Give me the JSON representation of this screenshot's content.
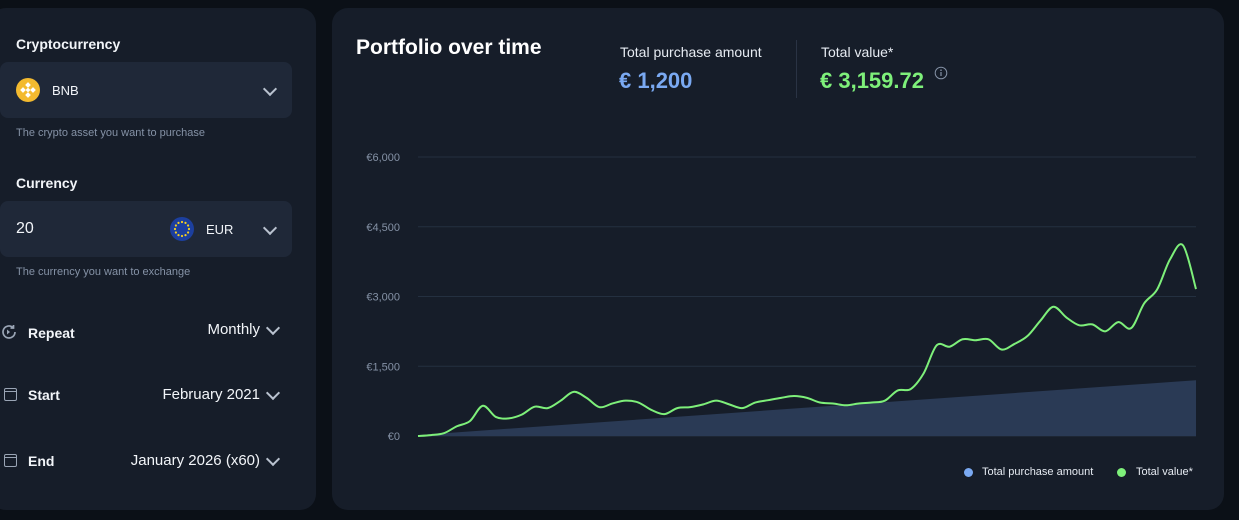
{
  "form": {
    "crypto": {
      "label": "Cryptocurrency",
      "selected": "BNB",
      "icon": "bnb-coin-icon",
      "hint": "The crypto asset you want to purchase"
    },
    "currency": {
      "label": "Currency",
      "amount": "20",
      "selected": "EUR",
      "icon": "eu-flag-icon",
      "hint": "The currency you want to exchange"
    },
    "repeat": {
      "label": "Repeat",
      "value": "Monthly"
    },
    "start": {
      "label": "Start",
      "value": "February 2021"
    },
    "end": {
      "label": "End",
      "value": "January 2026 (x60)"
    }
  },
  "summary": {
    "title": "Portfolio over time",
    "purchase_label": "Total purchase amount",
    "purchase_value": "€ 1,200",
    "value_label": "Total value*",
    "value_value": "€ 3,159.72"
  },
  "colors": {
    "purchase": "#7aa9f2",
    "value": "#7ef07a",
    "purchase_area": "#2a3a55"
  },
  "chart_data": {
    "type": "area",
    "yticks": [
      "€6,000",
      "€4,500",
      "€3,000",
      "€1,500",
      "€0"
    ],
    "ytick_values": [
      6000,
      4500,
      3000,
      1500,
      0
    ],
    "ylim": [
      0,
      6000
    ],
    "x_start": "February 2021",
    "x_end": "January 2026",
    "grid": true,
    "legend_position": "bottom-right",
    "series": [
      {
        "name": "Total purchase amount",
        "values": [
          20,
          1200
        ]
      },
      {
        "name": "Total value*",
        "values": [
          0,
          20,
          60,
          210,
          320,
          650,
          410,
          380,
          460,
          630,
          600,
          760,
          950,
          820,
          620,
          700,
          760,
          720,
          560,
          470,
          600,
          620,
          680,
          760,
          680,
          600,
          720,
          770,
          820,
          860,
          820,
          720,
          700,
          660,
          700,
          720,
          760,
          980,
          1010,
          1350,
          1950,
          1920,
          2080,
          2060,
          2080,
          1860,
          1980,
          2150,
          2480,
          2780,
          2550,
          2380,
          2400,
          2250,
          2450,
          2320,
          2850,
          3150,
          3800,
          4100,
          3159.72
        ]
      }
    ],
    "legend": [
      "Total purchase amount",
      "Total value*"
    ]
  }
}
